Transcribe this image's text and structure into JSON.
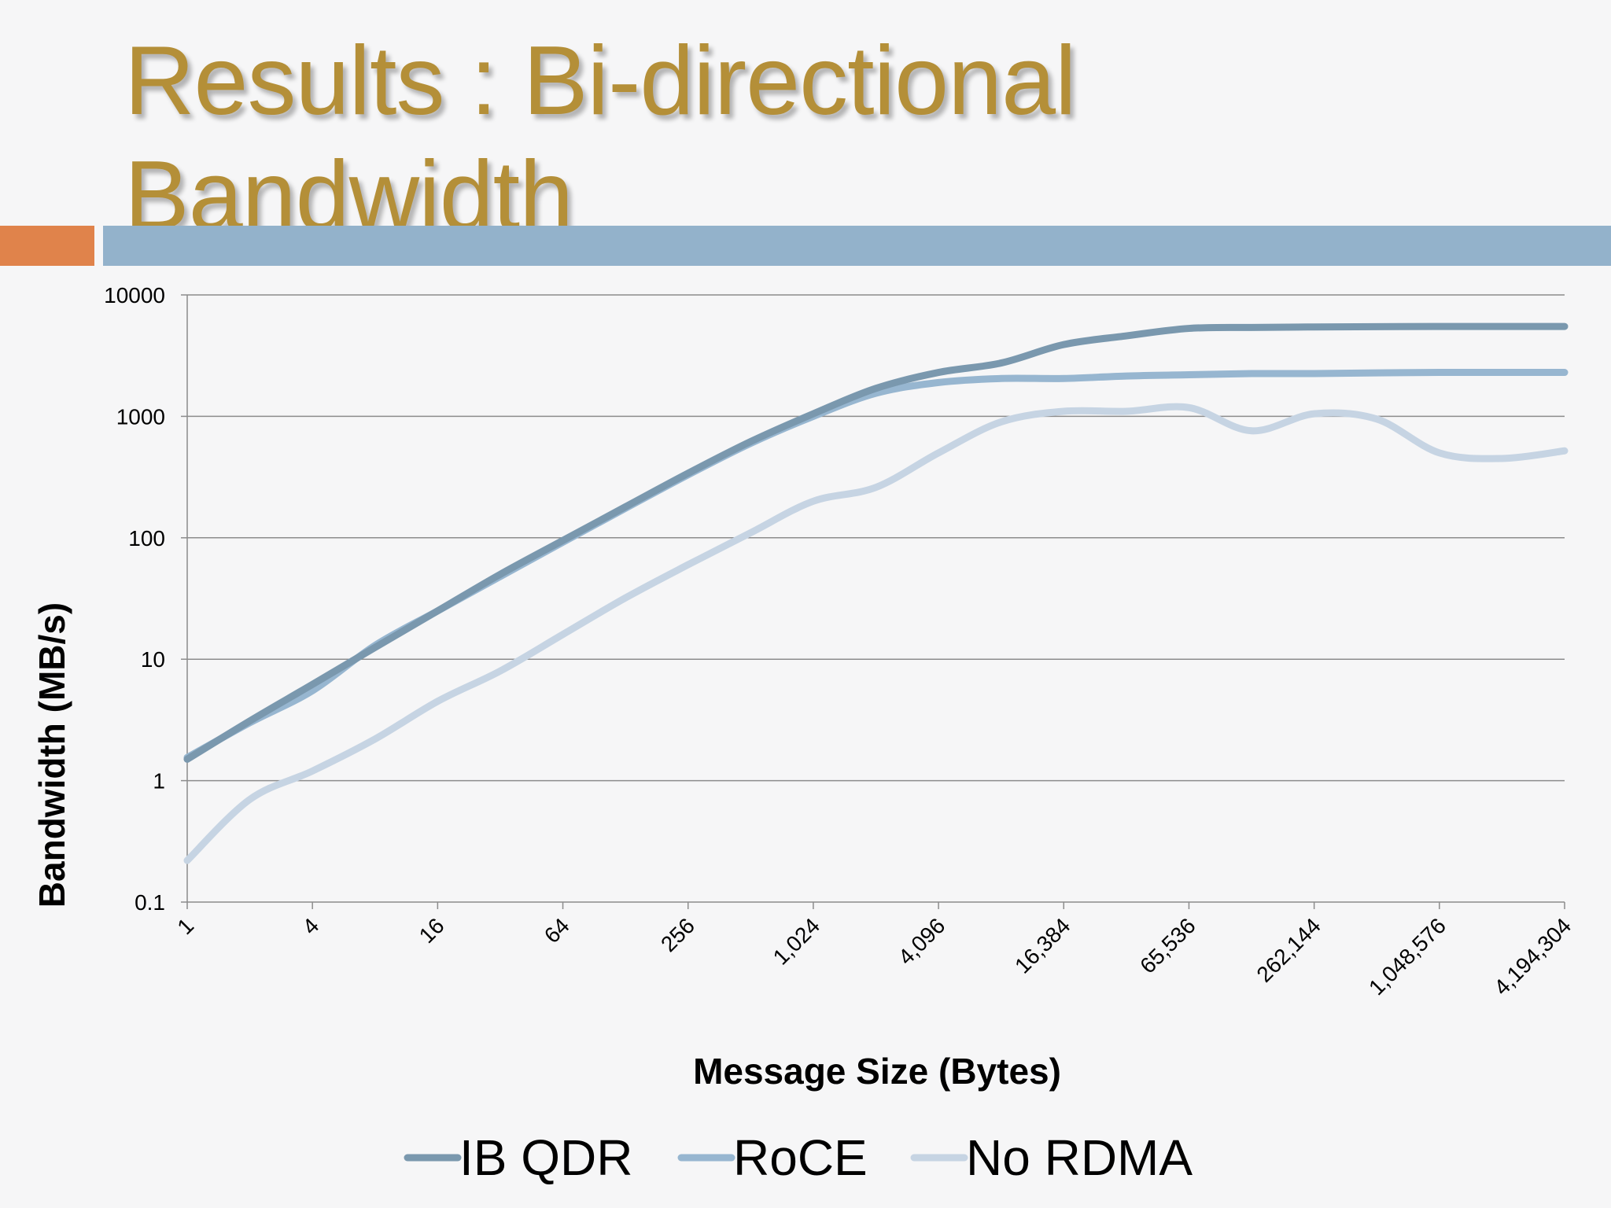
{
  "slide": {
    "title_line1": "Results : Bi-directional",
    "title_line2": "Bandwidth",
    "title_color": "#b48f38",
    "accent_orange": "#e0834b",
    "accent_blue": "#93b2cb"
  },
  "chart_data": {
    "type": "line",
    "title": "",
    "xlabel": "Message Size (Bytes)",
    "ylabel": "Bandwidth (MB/s)",
    "y_scale": "log10",
    "ylim": [
      0.1,
      10000
    ],
    "yticks": [
      "0.1",
      "1",
      "10",
      "100",
      "1000",
      "10000"
    ],
    "x": [
      1,
      2,
      4,
      8,
      16,
      32,
      64,
      128,
      256,
      512,
      1024,
      2048,
      4096,
      8192,
      16384,
      32768,
      65536,
      131072,
      262144,
      524288,
      1048576,
      2097152,
      4194304
    ],
    "xticks": [
      "1",
      "4",
      "16",
      "64",
      "256",
      "1,024",
      "4,096",
      "16,384",
      "65,536",
      "262,144",
      "1,048,576",
      "4,194,304"
    ],
    "grid": true,
    "legend_position": "bottom",
    "series": [
      {
        "name": "IB QDR",
        "color": "#7a98ae",
        "values": [
          1.5,
          3.1,
          6.2,
          12.5,
          25,
          50,
          95,
          180,
          340,
          620,
          1050,
          1700,
          2300,
          2750,
          3900,
          4600,
          5300,
          5400,
          5450,
          5480,
          5500,
          5500,
          5500
        ]
      },
      {
        "name": "RoCE",
        "color": "#97b6d0",
        "values": [
          1.55,
          3.0,
          5.5,
          13,
          25,
          48,
          92,
          175,
          330,
          600,
          1000,
          1550,
          1900,
          2050,
          2050,
          2150,
          2200,
          2250,
          2250,
          2280,
          2300,
          2300,
          2300
        ]
      },
      {
        "name": "No RDMA",
        "color": "#c6d4e3",
        "values": [
          0.22,
          0.7,
          1.2,
          2.2,
          4.5,
          8,
          16,
          32,
          60,
          110,
          200,
          260,
          500,
          900,
          1100,
          1100,
          1180,
          760,
          1050,
          950,
          500,
          450,
          520
        ]
      }
    ]
  }
}
